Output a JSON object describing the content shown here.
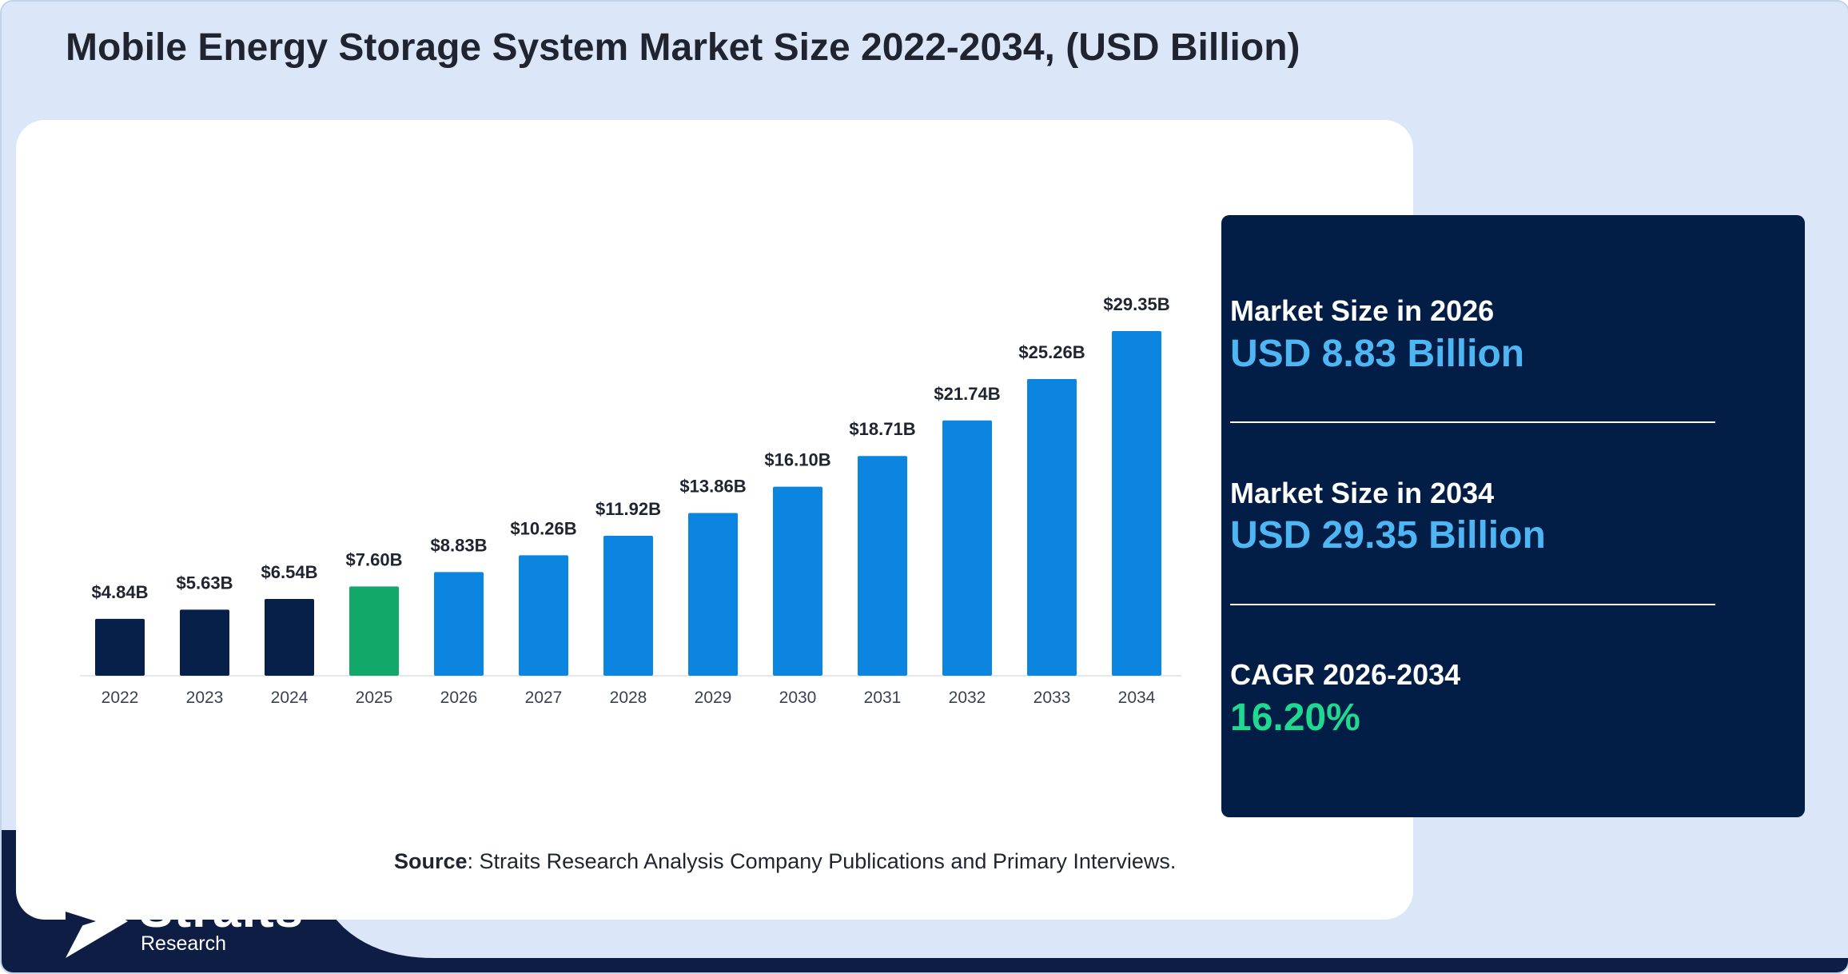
{
  "title": "Mobile Energy Storage System Market Size 2022-2034, (USD Billion)",
  "colors": {
    "historical": "#06204a",
    "base_year": "#11a86a",
    "forecast": "#0b85e0",
    "panel_bg": "#031e46",
    "accent_blue": "#4fb6f4",
    "accent_green": "#1fd991"
  },
  "chart_data": {
    "type": "bar",
    "title": "Mobile Energy Storage System Market Size 2022-2034, (USD Billion)",
    "categories": [
      "2022",
      "2023",
      "2024",
      "2025",
      "2026",
      "2027",
      "2028",
      "2029",
      "2030",
      "2031",
      "2032",
      "2033",
      "2034"
    ],
    "values": [
      4.84,
      5.63,
      6.54,
      7.6,
      8.83,
      10.26,
      11.92,
      13.86,
      16.1,
      18.71,
      21.74,
      25.26,
      29.35
    ],
    "labels": [
      "$4.84B",
      "$5.63B",
      "$6.54B",
      "$7.60B",
      "$8.83B",
      "$10.26B",
      "$11.92B",
      "$13.86B",
      "$16.10B",
      "$18.71B",
      "$21.74B",
      "$25.26B",
      "$29.35B"
    ],
    "bar_colors": [
      "#06204a",
      "#06204a",
      "#06204a",
      "#11a86a",
      "#0b85e0",
      "#0b85e0",
      "#0b85e0",
      "#0b85e0",
      "#0b85e0",
      "#0b85e0",
      "#0b85e0",
      "#0b85e0",
      "#0b85e0"
    ],
    "xlabel": "",
    "ylabel": "",
    "ylim": [
      0,
      29.35
    ],
    "grid": false,
    "legend": "none"
  },
  "stats": {
    "size_2026_label": "Market Size in 2026",
    "size_2026_value": "USD 8.83 Billion",
    "size_2034_label": "Market Size in 2034",
    "size_2034_value": "USD 29.35 Billion",
    "cagr_label": "CAGR 2026-2034",
    "cagr_value": "16.20%"
  },
  "source": {
    "prefix": "Source",
    "text": ": Straits Research Analysis Company Publications and Primary Interviews."
  },
  "logo": {
    "name": "Straits",
    "sub": "Research"
  }
}
